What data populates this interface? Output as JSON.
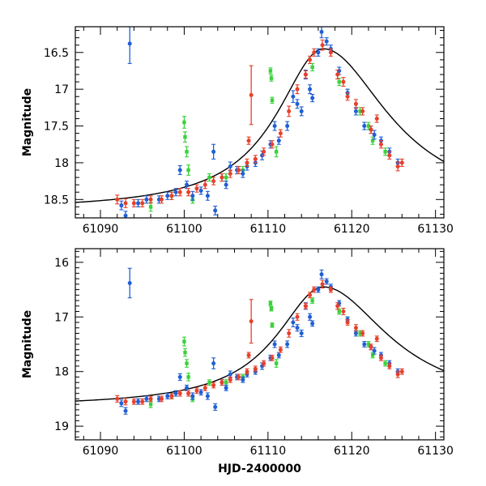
{
  "chart_data": [
    {
      "type": "scatter",
      "panel": "top",
      "title": "",
      "xlabel": "",
      "ylabel": "Magnitude",
      "xlim": [
        61087,
        61131
      ],
      "ylim": [
        18.75,
        16.15
      ],
      "y_inverted": true,
      "grid": false,
      "x_ticks": [
        61090,
        61100,
        61110,
        61120,
        61130
      ],
      "x_tick_labels": [
        "61090",
        "61100",
        "61110",
        "61120",
        "61130"
      ],
      "y_ticks": [
        16.5,
        17,
        17.5,
        18,
        18.5
      ],
      "y_tick_labels": [
        "16.5",
        "17",
        "17.5",
        "18",
        "18.5"
      ],
      "model_curve": {
        "name": "model",
        "color": "#000000"
      },
      "series": [
        {
          "name": "blue",
          "color": "#1f5fd6"
        },
        {
          "name": "red",
          "color": "#e8402a"
        },
        {
          "name": "green",
          "color": "#3ad13a"
        }
      ]
    },
    {
      "type": "scatter",
      "panel": "bottom",
      "title": "",
      "xlabel": "HJD-2400000",
      "ylabel": "Magnitude",
      "xlim": [
        61087,
        61131
      ],
      "ylim": [
        19.25,
        15.75
      ],
      "y_inverted": true,
      "grid": false,
      "x_ticks": [
        61090,
        61100,
        61110,
        61120,
        61130
      ],
      "x_tick_labels": [
        "61090",
        "61100",
        "61110",
        "61120",
        "61130"
      ],
      "y_ticks": [
        16,
        17,
        18,
        19
      ],
      "y_tick_labels": [
        "16",
        "17",
        "18",
        "19"
      ],
      "model_curve": {
        "name": "model",
        "color": "#000000"
      },
      "series": [
        {
          "name": "blue",
          "color": "#1f5fd6"
        },
        {
          "name": "red",
          "color": "#e8402a"
        },
        {
          "name": "green",
          "color": "#3ad13a"
        }
      ]
    }
  ],
  "observations": {
    "blue": [
      [
        61092.5,
        18.58,
        0.06
      ],
      [
        61093,
        18.72,
        0.06
      ],
      [
        61093.5,
        16.38,
        0.27
      ],
      [
        61094.5,
        18.55,
        0.05
      ],
      [
        61095.5,
        18.5,
        0.05
      ],
      [
        61097,
        18.5,
        0.05
      ],
      [
        61098,
        18.45,
        0.05
      ],
      [
        61099,
        18.4,
        0.05
      ],
      [
        61099.5,
        18.1,
        0.06
      ],
      [
        61100.3,
        18.3,
        0.05
      ],
      [
        61101,
        18.45,
        0.06
      ],
      [
        61102,
        18.38,
        0.05
      ],
      [
        61102.8,
        18.45,
        0.06
      ],
      [
        61103.5,
        17.85,
        0.1
      ],
      [
        61103.7,
        18.65,
        0.06
      ],
      [
        61104.5,
        18.2,
        0.05
      ],
      [
        61105,
        18.3,
        0.05
      ],
      [
        61105.5,
        18.05,
        0.06
      ],
      [
        61106.3,
        18.1,
        0.05
      ],
      [
        61107,
        18.15,
        0.05
      ],
      [
        61107.5,
        18.05,
        0.05
      ],
      [
        61108.5,
        18.0,
        0.05
      ],
      [
        61109.3,
        17.9,
        0.06
      ],
      [
        61110.3,
        17.75,
        0.05
      ],
      [
        61110.8,
        17.5,
        0.06
      ],
      [
        61111.3,
        17.7,
        0.05
      ],
      [
        61112.3,
        17.5,
        0.06
      ],
      [
        61113,
        17.1,
        0.08
      ],
      [
        61113.5,
        17.2,
        0.06
      ],
      [
        61114,
        17.3,
        0.06
      ],
      [
        61114.5,
        16.8,
        0.06
      ],
      [
        61115,
        17.0,
        0.06
      ],
      [
        61115.3,
        17.12,
        0.05
      ],
      [
        61116,
        16.5,
        0.05
      ],
      [
        61116.4,
        16.22,
        0.08
      ],
      [
        61117,
        16.35,
        0.05
      ],
      [
        61117.5,
        16.45,
        0.05
      ],
      [
        61118.5,
        16.75,
        0.05
      ],
      [
        61119.5,
        17.05,
        0.05
      ],
      [
        61120.5,
        17.3,
        0.05
      ],
      [
        61121.5,
        17.5,
        0.05
      ],
      [
        61122.3,
        17.55,
        0.05
      ],
      [
        61122.7,
        17.62,
        0.06
      ],
      [
        61123.5,
        17.7,
        0.05
      ],
      [
        61124.5,
        17.85,
        0.05
      ],
      [
        61125.5,
        18.0,
        0.05
      ]
    ],
    "red": [
      [
        61092,
        18.5,
        0.06
      ],
      [
        61093,
        18.55,
        0.06
      ],
      [
        61094,
        18.55,
        0.05
      ],
      [
        61095,
        18.55,
        0.05
      ],
      [
        61096,
        18.5,
        0.05
      ],
      [
        61097.3,
        18.5,
        0.05
      ],
      [
        61098.5,
        18.45,
        0.05
      ],
      [
        61099.5,
        18.4,
        0.05
      ],
      [
        61100.5,
        18.4,
        0.05
      ],
      [
        61101.5,
        18.35,
        0.05
      ],
      [
        61102.5,
        18.3,
        0.05
      ],
      [
        61103.5,
        18.25,
        0.05
      ],
      [
        61104.5,
        18.2,
        0.05
      ],
      [
        61105.5,
        18.15,
        0.05
      ],
      [
        61106.5,
        18.1,
        0.05
      ],
      [
        61107.5,
        18.0,
        0.05
      ],
      [
        61107.7,
        17.7,
        0.05
      ],
      [
        61108,
        17.08,
        0.4
      ],
      [
        61108.5,
        17.95,
        0.05
      ],
      [
        61109.5,
        17.85,
        0.05
      ],
      [
        61110.5,
        17.75,
        0.05
      ],
      [
        61111.5,
        17.6,
        0.05
      ],
      [
        61112.5,
        17.3,
        0.07
      ],
      [
        61113.5,
        17.0,
        0.06
      ],
      [
        61114.5,
        16.8,
        0.05
      ],
      [
        61115,
        16.6,
        0.05
      ],
      [
        61115.5,
        16.5,
        0.05
      ],
      [
        61116.5,
        16.4,
        0.07
      ],
      [
        61117.5,
        16.5,
        0.05
      ],
      [
        61118.3,
        16.8,
        0.06
      ],
      [
        61119,
        16.9,
        0.06
      ],
      [
        61119.5,
        17.1,
        0.05
      ],
      [
        61120.5,
        17.2,
        0.06
      ],
      [
        61121.3,
        17.3,
        0.05
      ],
      [
        61122.3,
        17.55,
        0.05
      ],
      [
        61123,
        17.4,
        0.05
      ],
      [
        61123.5,
        17.75,
        0.05
      ],
      [
        61124.5,
        17.9,
        0.05
      ],
      [
        61125.5,
        18.05,
        0.06
      ],
      [
        61126,
        18.0,
        0.05
      ]
    ],
    "green": [
      [
        61096,
        18.6,
        0.06
      ],
      [
        61098.5,
        18.45,
        0.05
      ],
      [
        61100,
        17.45,
        0.08
      ],
      [
        61100.1,
        17.65,
        0.07
      ],
      [
        61100.3,
        17.85,
        0.07
      ],
      [
        61100.5,
        18.1,
        0.07
      ],
      [
        61101,
        18.5,
        0.05
      ],
      [
        61103,
        18.2,
        0.05
      ],
      [
        61105,
        18.2,
        0.05
      ],
      [
        61107,
        18.1,
        0.05
      ],
      [
        61110.3,
        16.75,
        0.04
      ],
      [
        61110.4,
        16.85,
        0.04
      ],
      [
        61110.5,
        17.15,
        0.04
      ],
      [
        61111,
        17.85,
        0.07
      ],
      [
        61115.3,
        16.7,
        0.05
      ],
      [
        61118.5,
        16.9,
        0.05
      ],
      [
        61119.5,
        17.05,
        0.05
      ],
      [
        61121,
        17.3,
        0.05
      ],
      [
        61122,
        17.5,
        0.05
      ],
      [
        61122.5,
        17.7,
        0.05
      ],
      [
        61124,
        17.85,
        0.05
      ]
    ]
  }
}
